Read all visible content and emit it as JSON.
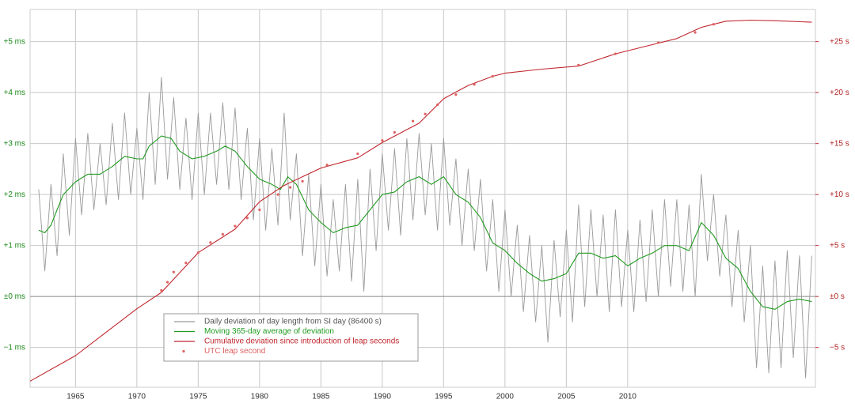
{
  "chart_data": {
    "type": "line",
    "xlim": [
      1961.3,
      2025.3
    ],
    "xticks": [
      1965,
      1970,
      1975,
      1980,
      1985,
      1990,
      1995,
      2000,
      2005,
      2010
    ],
    "ylim": [
      -1.78,
      5.63
    ],
    "yticks": [
      {
        "value": -1,
        "label": "−1 ms"
      },
      {
        "value": 0,
        "label": "±0 ms"
      },
      {
        "value": 1,
        "label": "+1 ms"
      },
      {
        "value": 2,
        "label": "+2 ms"
      },
      {
        "value": 3,
        "label": "+3 ms"
      },
      {
        "value": 4,
        "label": "+4 ms"
      },
      {
        "value": 5,
        "label": "+5 ms"
      }
    ],
    "y2lim": [
      -8.9,
      28.15
    ],
    "y2ticks": [
      {
        "value": -5,
        "label": "−5 s"
      },
      {
        "value": 0,
        "label": "±0 s"
      },
      {
        "value": 5,
        "label": "+5 s"
      },
      {
        "value": 10,
        "label": "+10 s"
      },
      {
        "value": 15,
        "label": "+15 s"
      },
      {
        "value": 20,
        "label": "+20 s"
      },
      {
        "value": 25,
        "label": "+25 s"
      }
    ],
    "grid": true,
    "series": [
      {
        "name": "Daily deviation of day length from SI day (86400 s)",
        "color": "#9a9a9a",
        "style": "line",
        "axis": "y",
        "x": [
          1962.0,
          1962.5,
          1963.0,
          1963.5,
          1964.0,
          1964.5,
          1965.0,
          1965.5,
          1966.0,
          1966.5,
          1967.0,
          1967.5,
          1968.0,
          1968.5,
          1969.0,
          1969.5,
          1970.0,
          1970.5,
          1971.0,
          1971.5,
          1972.0,
          1972.5,
          1973.0,
          1973.5,
          1974.0,
          1974.5,
          1975.0,
          1975.5,
          1976.0,
          1976.5,
          1977.0,
          1977.5,
          1978.0,
          1978.5,
          1979.0,
          1979.5,
          1980.0,
          1980.5,
          1981.0,
          1981.5,
          1982.0,
          1982.5,
          1983.0,
          1983.5,
          1984.0,
          1984.5,
          1985.0,
          1985.5,
          1986.0,
          1986.5,
          1987.0,
          1987.5,
          1988.0,
          1988.5,
          1989.0,
          1989.5,
          1990.0,
          1990.5,
          1991.0,
          1991.5,
          1992.0,
          1992.5,
          1993.0,
          1993.5,
          1994.0,
          1994.5,
          1995.0,
          1995.5,
          1996.0,
          1996.5,
          1997.0,
          1997.5,
          1998.0,
          1998.5,
          1999.0,
          1999.5,
          2000.0,
          2000.5,
          2001.0,
          2001.5,
          2002.0,
          2002.5,
          2003.0,
          2003.5,
          2004.0,
          2004.5,
          2005.0,
          2005.5,
          2006.0,
          2006.5,
          2007.0,
          2007.5,
          2008.0,
          2008.5,
          2009.0,
          2009.5,
          2010.0,
          2010.5,
          2011.0,
          2011.5,
          2012.0,
          2012.5,
          2013.0,
          2013.5,
          2014.0,
          2014.5,
          2015.0,
          2015.5,
          2016.0,
          2016.5,
          2017.0,
          2017.5,
          2018.0,
          2018.5,
          2019.0,
          2019.5,
          2020.0,
          2020.5,
          2021.0,
          2021.5,
          2022.0,
          2022.5,
          2023.0,
          2023.5,
          2024.0,
          2024.5,
          2025.0
        ],
        "values": [
          2.1,
          0.5,
          2.2,
          0.8,
          2.8,
          1.2,
          3.1,
          1.6,
          3.2,
          1.7,
          3.0,
          1.8,
          3.4,
          1.9,
          3.6,
          2.0,
          3.3,
          1.9,
          4.0,
          2.2,
          4.3,
          2.3,
          3.9,
          2.1,
          3.5,
          1.9,
          3.6,
          2.0,
          3.6,
          2.2,
          3.8,
          2.1,
          3.7,
          1.9,
          3.3,
          1.5,
          3.1,
          1.3,
          2.9,
          1.4,
          3.6,
          1.5,
          2.8,
          0.8,
          2.4,
          0.6,
          2.2,
          0.4,
          1.9,
          0.5,
          2.2,
          0.3,
          2.3,
          0.1,
          2.5,
          0.9,
          2.8,
          1.3,
          2.9,
          1.2,
          3.1,
          1.5,
          3.2,
          1.6,
          3.0,
          1.3,
          3.1,
          1.4,
          2.7,
          1.0,
          2.5,
          0.9,
          2.3,
          0.5,
          1.9,
          0.1,
          1.7,
          0.0,
          1.4,
          -0.3,
          1.2,
          -0.5,
          1.0,
          -0.9,
          1.1,
          -0.4,
          1.3,
          -0.5,
          1.8,
          -0.2,
          1.7,
          0.0,
          1.6,
          -0.3,
          1.7,
          -0.2,
          1.3,
          -0.3,
          1.5,
          -0.1,
          1.7,
          0.0,
          1.9,
          0.2,
          1.9,
          0.1,
          1.8,
          0.0,
          2.4,
          0.7,
          2.0,
          0.4,
          1.6,
          -0.2,
          1.3,
          -0.5,
          1.0,
          -1.4,
          0.6,
          -1.5,
          0.7,
          -1.4,
          0.9,
          -1.2,
          0.8,
          -1.6,
          0.8
        ]
      },
      {
        "name": "Moving 365-day average of deviation",
        "color": "#1f9a1f",
        "style": "line",
        "axis": "y",
        "x": [
          1962.0,
          1962.5,
          1963.0,
          1963.5,
          1964.0,
          1965.0,
          1966.0,
          1967.0,
          1968.0,
          1969.0,
          1970.0,
          1970.5,
          1971.0,
          1972.0,
          1972.8,
          1973.5,
          1974.5,
          1975.5,
          1976.5,
          1977.2,
          1978.0,
          1979.0,
          1980.0,
          1981.0,
          1981.7,
          1982.3,
          1983.0,
          1984.0,
          1985.0,
          1986.0,
          1987.0,
          1988.0,
          1989.0,
          1990.0,
          1991.0,
          1992.0,
          1993.0,
          1994.0,
          1995.0,
          1996.0,
          1997.0,
          1998.0,
          1999.0,
          2000.0,
          2001.0,
          2002.0,
          2003.0,
          2004.0,
          2005.0,
          2006.0,
          2007.0,
          2008.0,
          2009.0,
          2010.0,
          2011.0,
          2012.0,
          2013.0,
          2014.0,
          2015.0,
          2016.0,
          2017.0,
          2018.0,
          2019.0,
          2020.0,
          2021.0,
          2022.0,
          2023.0,
          2024.0,
          2025.0
        ],
        "values": [
          1.3,
          1.25,
          1.4,
          1.7,
          2.0,
          2.25,
          2.4,
          2.4,
          2.55,
          2.75,
          2.7,
          2.7,
          2.95,
          3.15,
          3.1,
          2.85,
          2.7,
          2.75,
          2.85,
          2.95,
          2.85,
          2.55,
          2.3,
          2.2,
          2.1,
          2.35,
          2.2,
          1.7,
          1.45,
          1.25,
          1.35,
          1.4,
          1.7,
          2.0,
          2.05,
          2.25,
          2.35,
          2.2,
          2.35,
          2.0,
          1.85,
          1.55,
          1.05,
          0.9,
          0.65,
          0.45,
          0.3,
          0.35,
          0.45,
          0.85,
          0.85,
          0.75,
          0.8,
          0.6,
          0.75,
          0.85,
          1.0,
          1.0,
          0.9,
          1.45,
          1.2,
          0.75,
          0.55,
          0.1,
          -0.2,
          -0.25,
          -0.1,
          -0.05,
          -0.1
        ]
      },
      {
        "name": "Cumulative deviation since introduction of leap seconds",
        "color": "#c0262d",
        "style": "line",
        "axis": "y2",
        "x": [
          1961.3,
          1965.0,
          1970.0,
          1972.0,
          1975.0,
          1978.0,
          1980.0,
          1982.0,
          1985.0,
          1988.0,
          1990.0,
          1993.0,
          1995.0,
          1997.0,
          1999.0,
          2000.0,
          2003.0,
          2006.0,
          2009.0,
          2012.0,
          2014.0,
          2016.0,
          2018.0,
          2020.0,
          2022.0,
          2025.0
        ],
        "values": [
          -8.3,
          -5.8,
          -1.2,
          0.4,
          4.3,
          6.6,
          9.3,
          10.9,
          12.6,
          13.6,
          15.1,
          17.0,
          19.4,
          20.7,
          21.6,
          21.9,
          22.3,
          22.6,
          23.8,
          24.7,
          25.3,
          26.4,
          27.0,
          27.1,
          27.05,
          26.9
        ]
      },
      {
        "name": "UTC leap second",
        "color": "#e06060",
        "style": "markers",
        "axis": "y2",
        "x": [
          1972.0,
          1972.5,
          1973.0,
          1974.0,
          1975.0,
          1976.0,
          1977.0,
          1978.0,
          1979.0,
          1980.0,
          1981.5,
          1982.5,
          1983.5,
          1985.5,
          1988.0,
          1990.0,
          1991.0,
          1992.5,
          1993.5,
          1994.5,
          1996.0,
          1997.5,
          1999.0,
          2006.0,
          2009.0,
          2012.5,
          2015.5,
          2017.0
        ],
        "values": [
          0.6,
          1.4,
          2.4,
          3.3,
          4.3,
          5.3,
          6.1,
          6.9,
          7.7,
          8.5,
          10.0,
          10.7,
          11.3,
          12.9,
          14.0,
          15.3,
          16.1,
          17.2,
          17.9,
          18.8,
          19.8,
          20.8,
          21.6,
          22.7,
          23.8,
          24.9,
          25.9,
          26.7
        ]
      }
    ]
  }
}
